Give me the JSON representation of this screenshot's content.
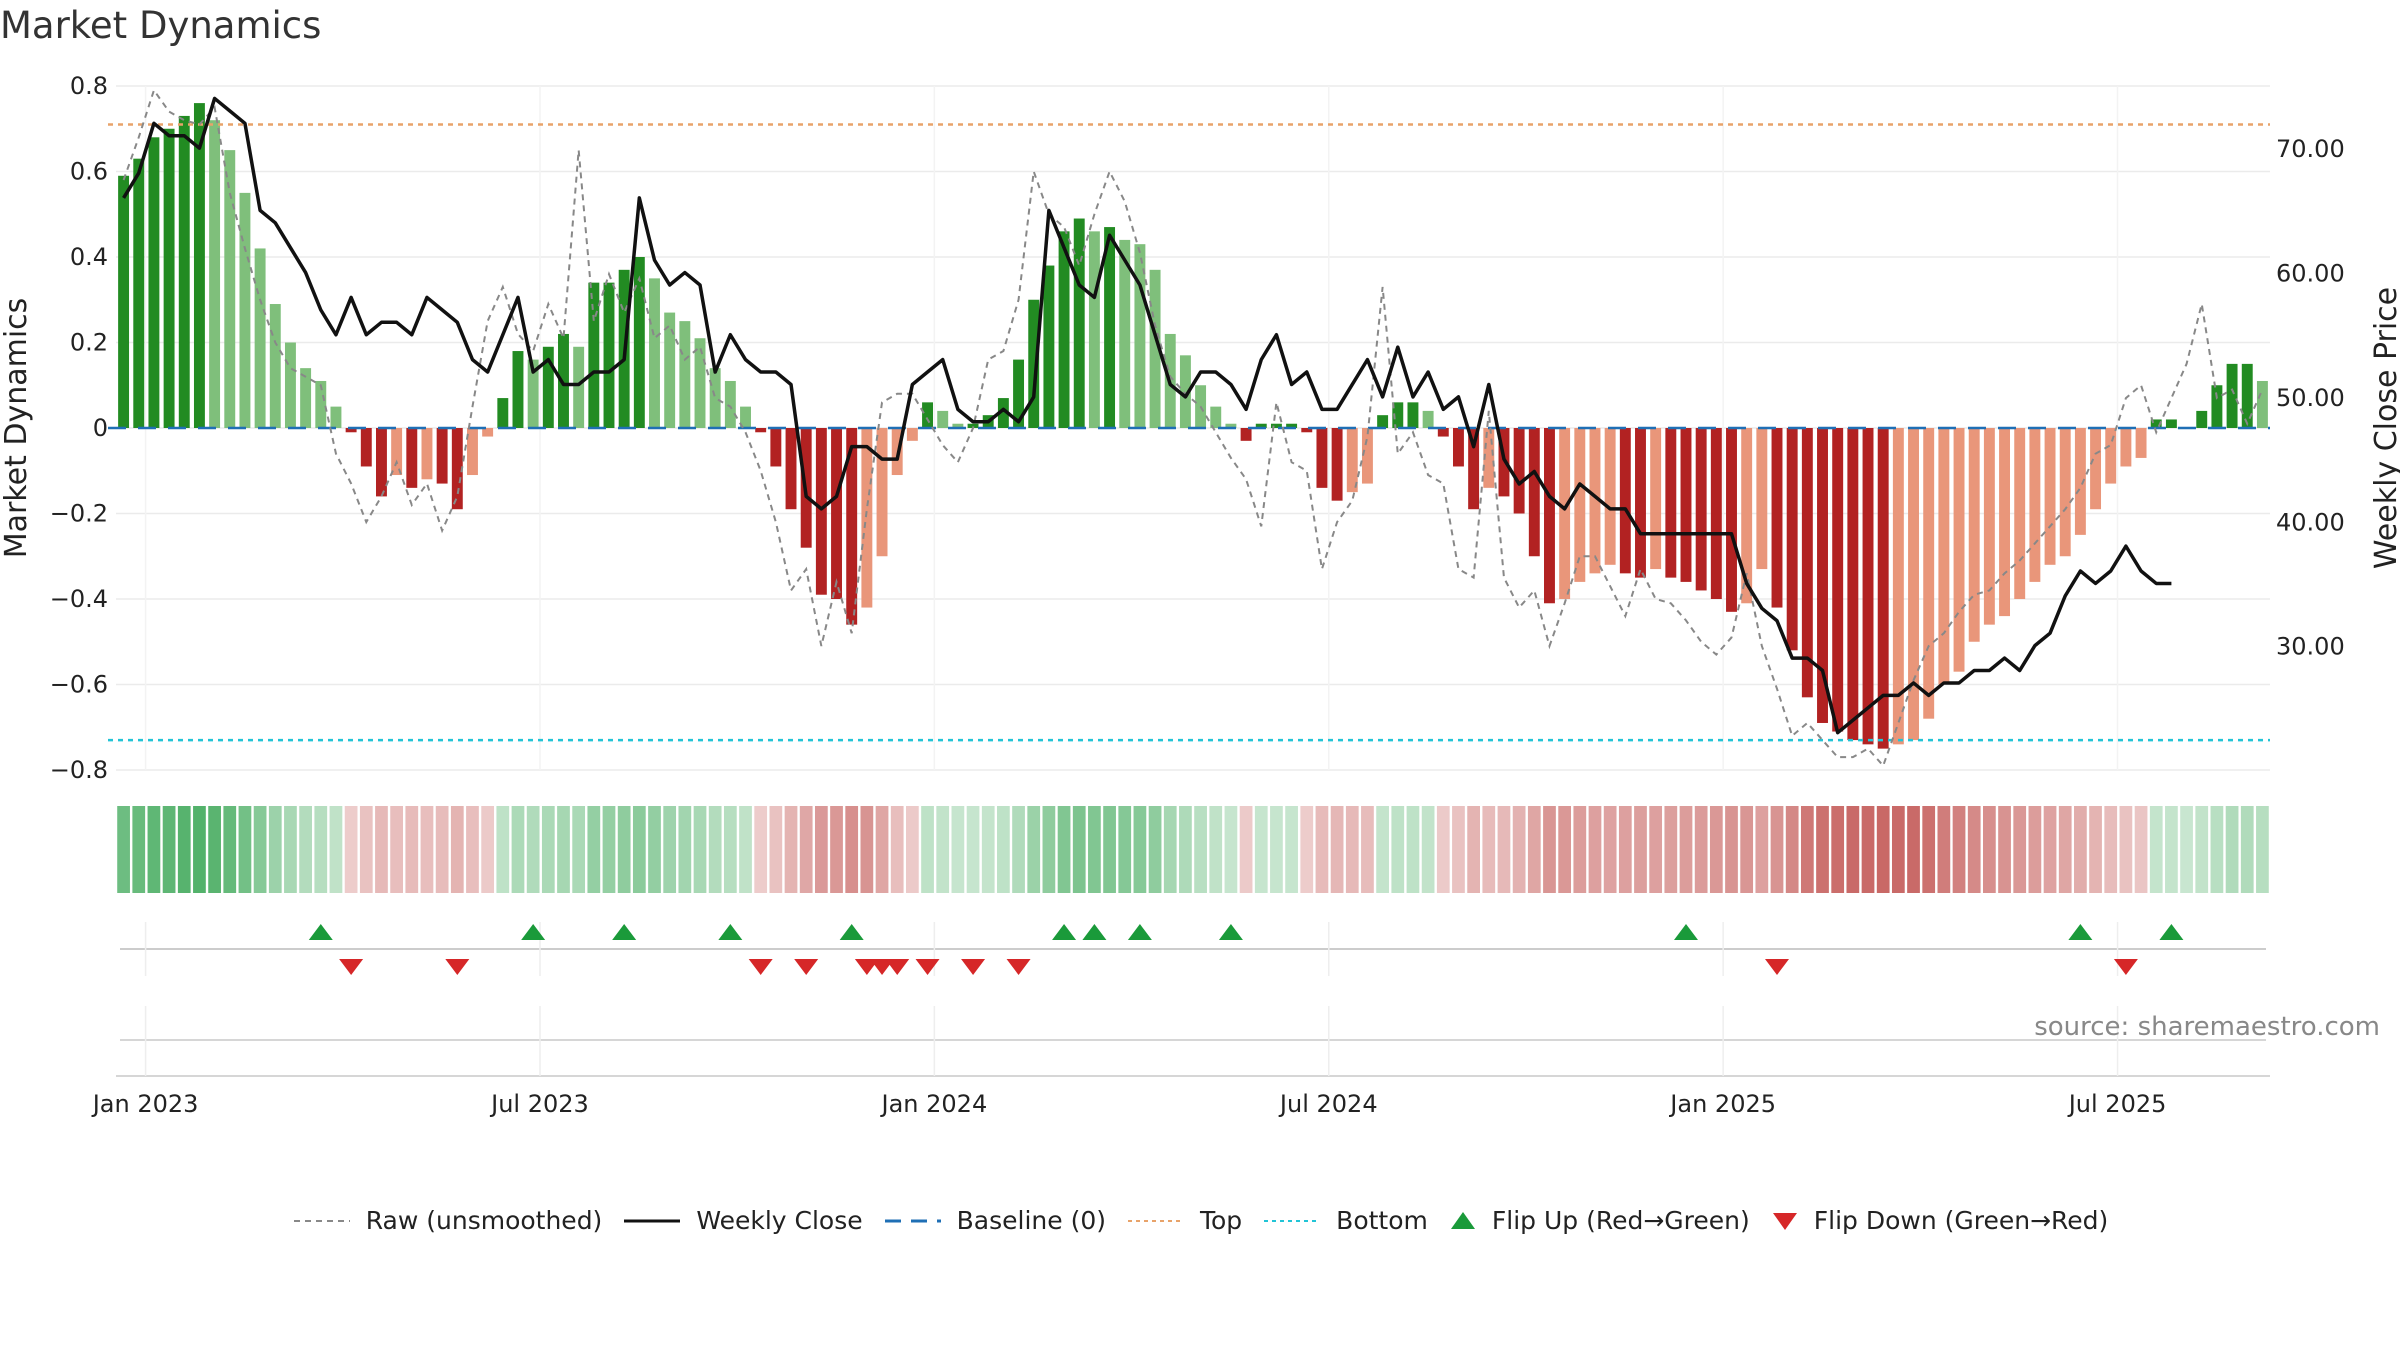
{
  "title": "Market Dynamics",
  "source": "source: sharemaestro.com",
  "chart_data": {
    "type": "bar",
    "title": "Market Dynamics",
    "ylabel": "Market Dynamics",
    "y2label": "Weekly Close Price",
    "ylim": [
      -0.8,
      0.8
    ],
    "y2lim": [
      20,
      75
    ],
    "y_ticks": [
      "0.8",
      "0.6",
      "0.4",
      "0.2",
      "0",
      "−0.2",
      "−0.4",
      "−0.6",
      "−0.8"
    ],
    "y_tick_values": [
      0.8,
      0.6,
      0.4,
      0.2,
      0,
      -0.2,
      -0.4,
      -0.6,
      -0.8
    ],
    "y2_ticks": [
      "70.00",
      "60.00",
      "50.00",
      "40.00",
      "30.00"
    ],
    "y2_tick_values": [
      70,
      60,
      50,
      40,
      30
    ],
    "x_ticks": [
      "Jan 2023",
      "Jul 2023",
      "Jan 2024",
      "Jul 2024",
      "Jan 2025",
      "Jul 2025"
    ],
    "x_tick_weeks": [
      1,
      27,
      53,
      79,
      105,
      131
    ],
    "top_level": 0.71,
    "bottom_level": -0.73,
    "baseline": 0,
    "grid": true,
    "legend_position": "bottom",
    "smoothed": [
      0.59,
      0.63,
      0.68,
      0.7,
      0.73,
      0.76,
      0.72,
      0.65,
      0.55,
      0.42,
      0.29,
      0.2,
      0.14,
      0.11,
      0.05,
      -0.01,
      -0.09,
      -0.16,
      -0.11,
      -0.14,
      -0.12,
      -0.13,
      -0.19,
      -0.11,
      -0.02,
      0.07,
      0.18,
      0.16,
      0.19,
      0.22,
      0.19,
      0.34,
      0.34,
      0.37,
      0.4,
      0.35,
      0.27,
      0.25,
      0.21,
      0.14,
      0.11,
      0.05,
      -0.01,
      -0.09,
      -0.19,
      -0.28,
      -0.39,
      -0.4,
      -0.46,
      -0.42,
      -0.3,
      -0.11,
      -0.03,
      0.06,
      0.04,
      0.01,
      0.01,
      0.03,
      0.07,
      0.16,
      0.3,
      0.38,
      0.46,
      0.49,
      0.46,
      0.47,
      0.44,
      0.43,
      0.37,
      0.22,
      0.17,
      0.1,
      0.05,
      0.01,
      -0.03,
      0.01,
      0.01,
      0.01,
      -0.01,
      -0.14,
      -0.17,
      -0.15,
      -0.13,
      0.03,
      0.06,
      0.06,
      0.04,
      -0.02,
      -0.09,
      -0.19,
      -0.14,
      -0.16,
      -0.2,
      -0.3,
      -0.41,
      -0.4,
      -0.36,
      -0.34,
      -0.32,
      -0.34,
      -0.35,
      -0.33,
      -0.35,
      -0.36,
      -0.38,
      -0.4,
      -0.43,
      -0.41,
      -0.33,
      -0.42,
      -0.52,
      -0.63,
      -0.69,
      -0.71,
      -0.73,
      -0.74,
      -0.75,
      -0.74,
      -0.73,
      -0.68,
      -0.6,
      -0.57,
      -0.5,
      -0.46,
      -0.44,
      -0.4,
      -0.36,
      -0.32,
      -0.3,
      -0.25,
      -0.19,
      -0.13,
      -0.09,
      -0.07,
      0.02,
      0.02,
      0.0,
      0.04,
      0.1,
      0.15,
      0.15,
      0.11
    ],
    "raw": [
      0.58,
      0.68,
      0.79,
      0.74,
      0.72,
      0.71,
      0.75,
      0.55,
      0.42,
      0.3,
      0.2,
      0.14,
      0.12,
      0.1,
      -0.06,
      -0.13,
      -0.22,
      -0.16,
      -0.08,
      -0.18,
      -0.13,
      -0.24,
      -0.16,
      0.05,
      0.25,
      0.33,
      0.22,
      0.18,
      0.29,
      0.21,
      0.65,
      0.25,
      0.36,
      0.27,
      0.35,
      0.21,
      0.24,
      0.16,
      0.19,
      0.07,
      0.05,
      -0.01,
      -0.1,
      -0.22,
      -0.38,
      -0.33,
      -0.51,
      -0.36,
      -0.48,
      -0.19,
      0.06,
      0.08,
      0.08,
      0.02,
      -0.04,
      -0.08,
      0.0,
      0.16,
      0.18,
      0.3,
      0.6,
      0.5,
      0.47,
      0.38,
      0.5,
      0.6,
      0.53,
      0.41,
      0.24,
      0.12,
      0.08,
      0.05,
      -0.01,
      -0.07,
      -0.12,
      -0.23,
      0.06,
      -0.08,
      -0.1,
      -0.33,
      -0.22,
      -0.17,
      -0.02,
      0.33,
      -0.06,
      -0.01,
      -0.11,
      -0.13,
      -0.33,
      -0.35,
      0.04,
      -0.35,
      -0.42,
      -0.38,
      -0.51,
      -0.41,
      -0.3,
      -0.3,
      -0.37,
      -0.44,
      -0.33,
      -0.4,
      -0.41,
      -0.45,
      -0.5,
      -0.53,
      -0.49,
      -0.34,
      -0.51,
      -0.61,
      -0.72,
      -0.69,
      -0.73,
      -0.77,
      -0.77,
      -0.75,
      -0.79,
      -0.69,
      -0.59,
      -0.51,
      -0.48,
      -0.43,
      -0.39,
      -0.38,
      -0.34,
      -0.31,
      -0.27,
      -0.23,
      -0.19,
      -0.14,
      -0.06,
      -0.04,
      0.07,
      0.1,
      -0.01,
      0.07,
      0.15,
      0.29,
      0.07,
      0.09,
      0.01,
      0.09
    ],
    "weekly_close": [
      66,
      68,
      72,
      71,
      71,
      70,
      74,
      73,
      72,
      65,
      64,
      62,
      60,
      57,
      55,
      58,
      55,
      56,
      56,
      55,
      58,
      57,
      56,
      53,
      52,
      55,
      58,
      52,
      53,
      51,
      51,
      52,
      52,
      53,
      66,
      61,
      59,
      60,
      59,
      52,
      55,
      53,
      52,
      52,
      51,
      42,
      41,
      42,
      46,
      46,
      45,
      45,
      51,
      52,
      53,
      49,
      48,
      48,
      49,
      48,
      50,
      65,
      62,
      59,
      58,
      63,
      61,
      59,
      55,
      51,
      50,
      52,
      52,
      51,
      49,
      53,
      55,
      51,
      52,
      49,
      49,
      51,
      53,
      50,
      54,
      50,
      52,
      49,
      50,
      46,
      51,
      45,
      43,
      44,
      42,
      41,
      43,
      42,
      41,
      41,
      39,
      39,
      39,
      39,
      39,
      39,
      39,
      35,
      33,
      32,
      29,
      29,
      28,
      23,
      24,
      25,
      26,
      26,
      27,
      26,
      27,
      27,
      28,
      28,
      29,
      28,
      30,
      31,
      34,
      36,
      35,
      36,
      38,
      36,
      35,
      35
    ],
    "flip_up_weeks": [
      13,
      27,
      33,
      40,
      48,
      62,
      64,
      67,
      73,
      103,
      129,
      135
    ],
    "flip_down_weeks": [
      15,
      22,
      42,
      45,
      49,
      50,
      51,
      53,
      56,
      59,
      109,
      132
    ],
    "legend": [
      "Raw (unsmoothed)",
      "Weekly Close",
      "Baseline (0)",
      "Top",
      "Bottom",
      "Flip Up (Red→Green)",
      "Flip Down (Green→Red)"
    ]
  },
  "colors": {
    "bar_green_strong": "#228b22",
    "bar_green_light": "#7fbf7b",
    "bar_red_strong": "#b22222",
    "bar_red_light": "#e9967a",
    "close_line": "#111111",
    "raw_line": "#888888",
    "baseline": "#1f6fb5",
    "top": "#e8a36a",
    "bottom": "#22c4d6",
    "flip_up": "#1a9a3a",
    "flip_down": "#d62728"
  }
}
